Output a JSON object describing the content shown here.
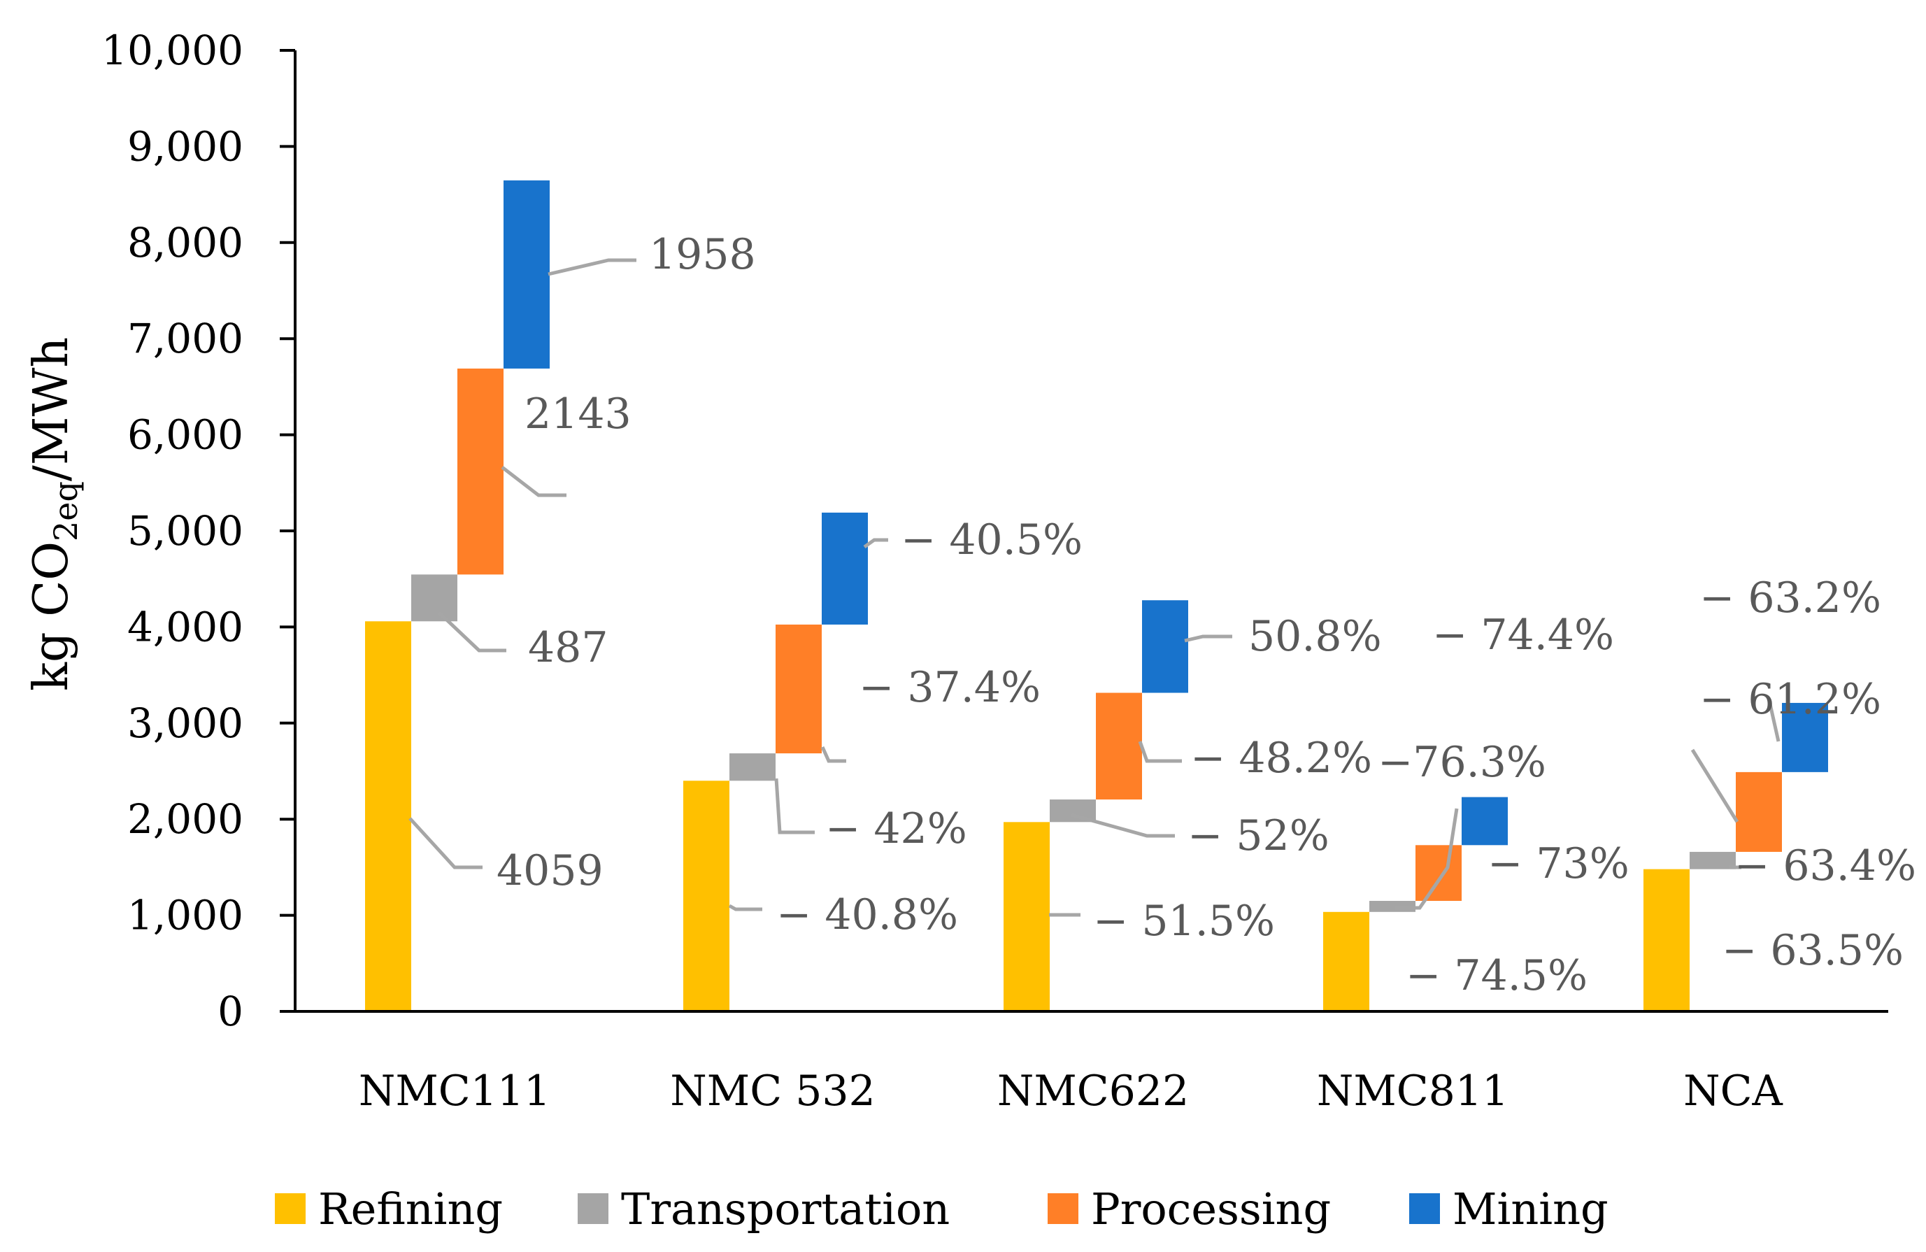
{
  "chart_data": {
    "type": "bar",
    "subtype": "stacked-waterfall",
    "title": "",
    "ylabel": {
      "main": "kg CO",
      "sub": "2eq",
      "tail": "/MWh"
    },
    "xlabel": "",
    "ylim": [
      0,
      10000
    ],
    "yticks": [
      "0",
      "1,000",
      "2,000",
      "3,000",
      "4,000",
      "5,000",
      "6,000",
      "7,000",
      "8,000",
      "9,000",
      "10,000"
    ],
    "ytick_values": [
      0,
      1000,
      2000,
      3000,
      4000,
      5000,
      6000,
      7000,
      8000,
      9000,
      10000
    ],
    "categories": [
      "NMC111",
      "NMC 532",
      "NMC622",
      "NMC811",
      "NCA"
    ],
    "series": [
      {
        "name": "Refining",
        "color": "#FFC000",
        "values": [
          4059,
          2400,
          1970,
          1035,
          1480
        ],
        "labels": [
          "4059",
          "− 40.8%",
          "− 51.5%",
          "− 74.5%",
          "− 63.5%"
        ]
      },
      {
        "name": "Transportation",
        "color": "#A5A5A5",
        "values": [
          487,
          285,
          235,
          115,
          180
        ],
        "labels": [
          "487",
          "− 42%",
          "− 52%",
          "−76.3%",
          "− 63.4%"
        ]
      },
      {
        "name": "Processing",
        "color": "#FF7F27",
        "values": [
          2143,
          1340,
          1110,
          580,
          830
        ],
        "labels": [
          "2143",
          "− 37.4%",
          "− 48.2%",
          "− 73%",
          "− 61.2%"
        ]
      },
      {
        "name": "Mining",
        "color": "#1873CC",
        "values": [
          1958,
          1165,
          963,
          500,
          720
        ],
        "labels": [
          "1958",
          "− 40.5%",
          "50.8%",
          "− 74.4%",
          "− 63.2%"
        ]
      }
    ],
    "legend_position": "bottom",
    "grid": false
  }
}
